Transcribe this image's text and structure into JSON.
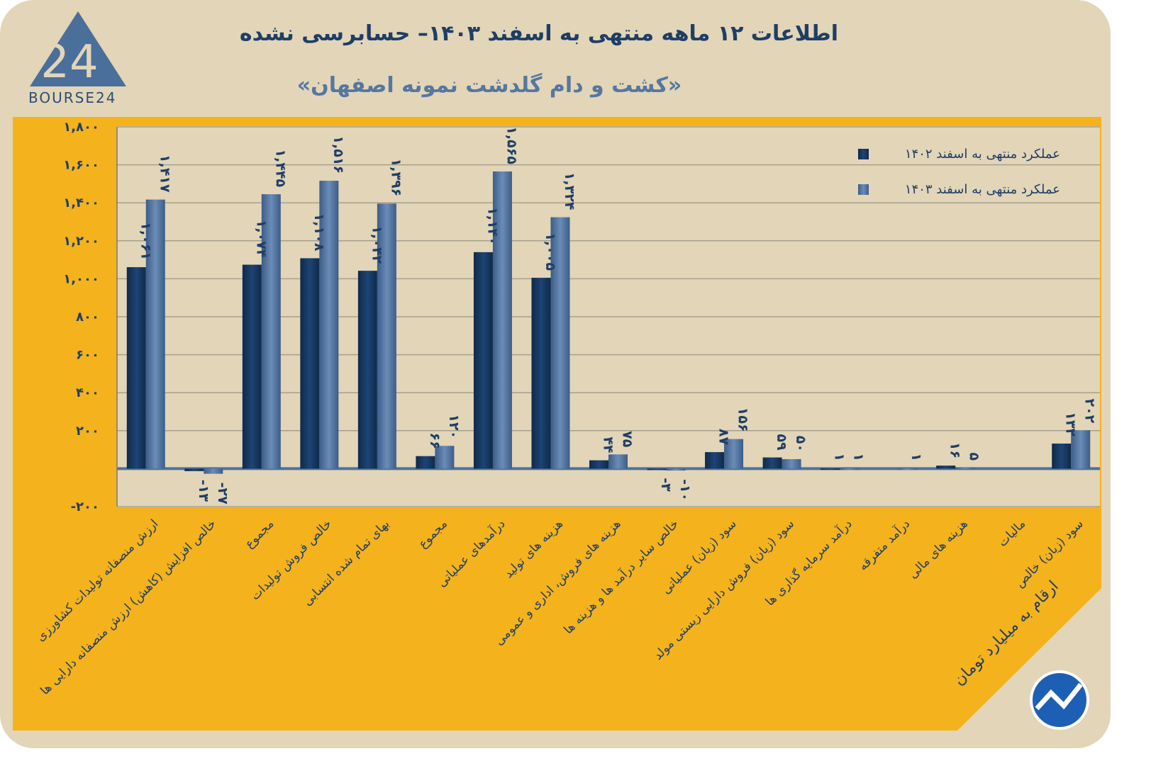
{
  "header": {
    "title": "اطلاعات ۱۲ ماهه منتهی به اسفند ۱۴۰۳– حسابرسی نشده",
    "subtitle": "«کشت و دام گلدشت نمونه اصفهان»",
    "logo_text": "BOURSE24",
    "units_note": "ارقام به میلیارد تومان"
  },
  "colors": {
    "series1": "#163a63",
    "series2": "#4f719c",
    "background": "#e2d5b8",
    "panel": "#f4b21c",
    "text": "#1f3e66"
  },
  "chart_data": {
    "type": "bar",
    "title": "اطلاعات ۱۲ ماهه منتهی به اسفند ۱۴۰۳– حسابرسی نشده",
    "xlabel": "",
    "ylabel": "",
    "ylim": [
      -200,
      1800
    ],
    "grid": true,
    "legend_position": "top-right",
    "yticks": [
      -200,
      0,
      200,
      400,
      600,
      800,
      1000,
      1200,
      1400,
      1600,
      1800
    ],
    "ytick_labels": [
      "-۲۰۰",
      "",
      "۲۰۰",
      "۴۰۰",
      "۶۰۰",
      "۸۰۰",
      "۱,۰۰۰",
      "۱,۲۰۰",
      "۱,۴۰۰",
      "۱,۶۰۰",
      "۱,۸۰۰"
    ],
    "categories": [
      "ارزش منصفانه تولیدات کشاورزی",
      "خالص افزایش (کاهش) ارزش منصفانه دارایی ها",
      "مجموع",
      "خالص فروش تولیدات",
      "بهای تمام شده انتسابی",
      "مجموع",
      "درآمدهای عملیاتی",
      "هزینه های تولید",
      "هزینه های فروش، اداری و عمومی",
      "خالص سایر درآمد ها و هزینه ها",
      "سود (زیان) عملیاتی",
      "سود (زیان) فروش دارایی زیستی مولد",
      "درآمد سرمایه گذاری ها",
      "درآمد متفرقه",
      "هزینه های مالی",
      "مالیات",
      "سود (زیان) خالص"
    ],
    "series": [
      {
        "name": "عملکرد منتهی به اسفند ۱۴۰۲",
        "values": [
          1061,
          -13,
          1074,
          1108,
          1042,
          66,
          1140,
          1005,
          44,
          -3,
          87,
          59,
          1,
          null,
          16,
          null,
          132
        ],
        "labels": [
          "۱,۰۶۱",
          "-۱۳",
          "۱,۰۷۴",
          "۱,۱۰۸",
          "۱,۰۴۲",
          "۶۶",
          "۱,۱۴۰",
          "۱,۰۰۵",
          "۴۴",
          "-۳",
          "۸۷",
          "۵۹",
          "۱",
          "",
          "۱۶",
          "",
          "۱۳۲"
        ]
      },
      {
        "name": "عملکرد منتهی به اسفند ۱۴۰۳",
        "values": [
          1417,
          -27,
          1445,
          1516,
          1396,
          120,
          1565,
          1324,
          75,
          -10,
          156,
          50,
          1,
          1,
          5,
          null,
          202
        ],
        "labels": [
          "۱,۴۱۷",
          "-۲۷",
          "۱,۴۴۵",
          "۱,۵۱۶",
          "۱,۳۹۶",
          "۱۲۰",
          "۱,۵۶۵",
          "۱,۳۲۴",
          "۷۵",
          "-۱۰",
          "۱۵۶",
          "۵۰",
          "۱",
          "۱",
          "۵",
          "",
          "۲۰۲"
        ]
      }
    ]
  }
}
